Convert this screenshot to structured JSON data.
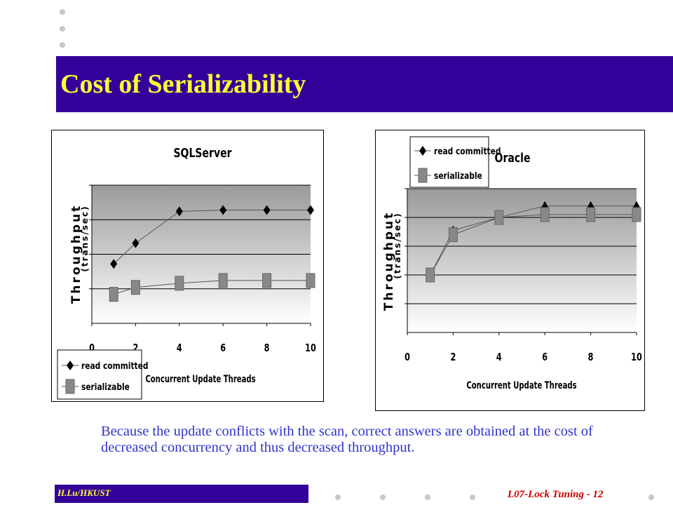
{
  "title": "Cost of Serializability",
  "caption": "Because the update conflicts with the scan, correct answers are obtained at the cost of decreased concurrency and thus decreased throughput.",
  "footer": {
    "left": "H.Lu/HKUST",
    "right": "L07-Lock Tuning  -  12"
  },
  "colors": {
    "title_bar": "#330099",
    "title_text": "#ffff33",
    "caption_text": "#3333cc",
    "footer_right": "#cc0000"
  },
  "chart_data": [
    {
      "type": "line",
      "title": "SQLServer",
      "xlabel": "Concurrent Update Threads",
      "ylabel": "Throughput",
      "ylabel_sub": "(trans/sec)",
      "x_ticks": [
        0,
        2,
        4,
        6,
        8,
        10
      ],
      "xlim": [
        0,
        10
      ],
      "ylim": [
        0,
        1
      ],
      "y_gridlines": [
        0.25,
        0.5,
        0.75,
        1.0
      ],
      "legend_position": "bottom-left",
      "series": [
        {
          "name": "read committed",
          "marker": "diamond",
          "x": [
            1,
            2,
            4,
            6,
            8,
            10
          ],
          "y": [
            0.43,
            0.58,
            0.81,
            0.82,
            0.82,
            0.82
          ]
        },
        {
          "name": "serializable",
          "marker": "square",
          "x": [
            1,
            2,
            4,
            6,
            8,
            10
          ],
          "y": [
            0.21,
            0.26,
            0.29,
            0.31,
            0.31,
            0.31
          ]
        }
      ]
    },
    {
      "type": "line",
      "title": "Oracle",
      "xlabel": "Concurrent Update Threads",
      "ylabel": "Throughput",
      "ylabel_sub": "(trans/sec)",
      "x_ticks": [
        0,
        2,
        4,
        6,
        8,
        10
      ],
      "xlim": [
        0,
        10
      ],
      "ylim": [
        0,
        1
      ],
      "y_gridlines": [
        0.2,
        0.4,
        0.6,
        0.8,
        1.0
      ],
      "legend_position": "top-left",
      "series": [
        {
          "name": "read committed",
          "marker": "triangle",
          "x": [
            1,
            2,
            4,
            6,
            8,
            10
          ],
          "y": [
            0.4,
            0.71,
            0.8,
            0.88,
            0.88,
            0.88
          ]
        },
        {
          "name": "serializable",
          "marker": "square",
          "x": [
            1,
            2,
            4,
            6,
            8,
            10
          ],
          "y": [
            0.4,
            0.68,
            0.8,
            0.82,
            0.82,
            0.82
          ]
        }
      ]
    }
  ]
}
